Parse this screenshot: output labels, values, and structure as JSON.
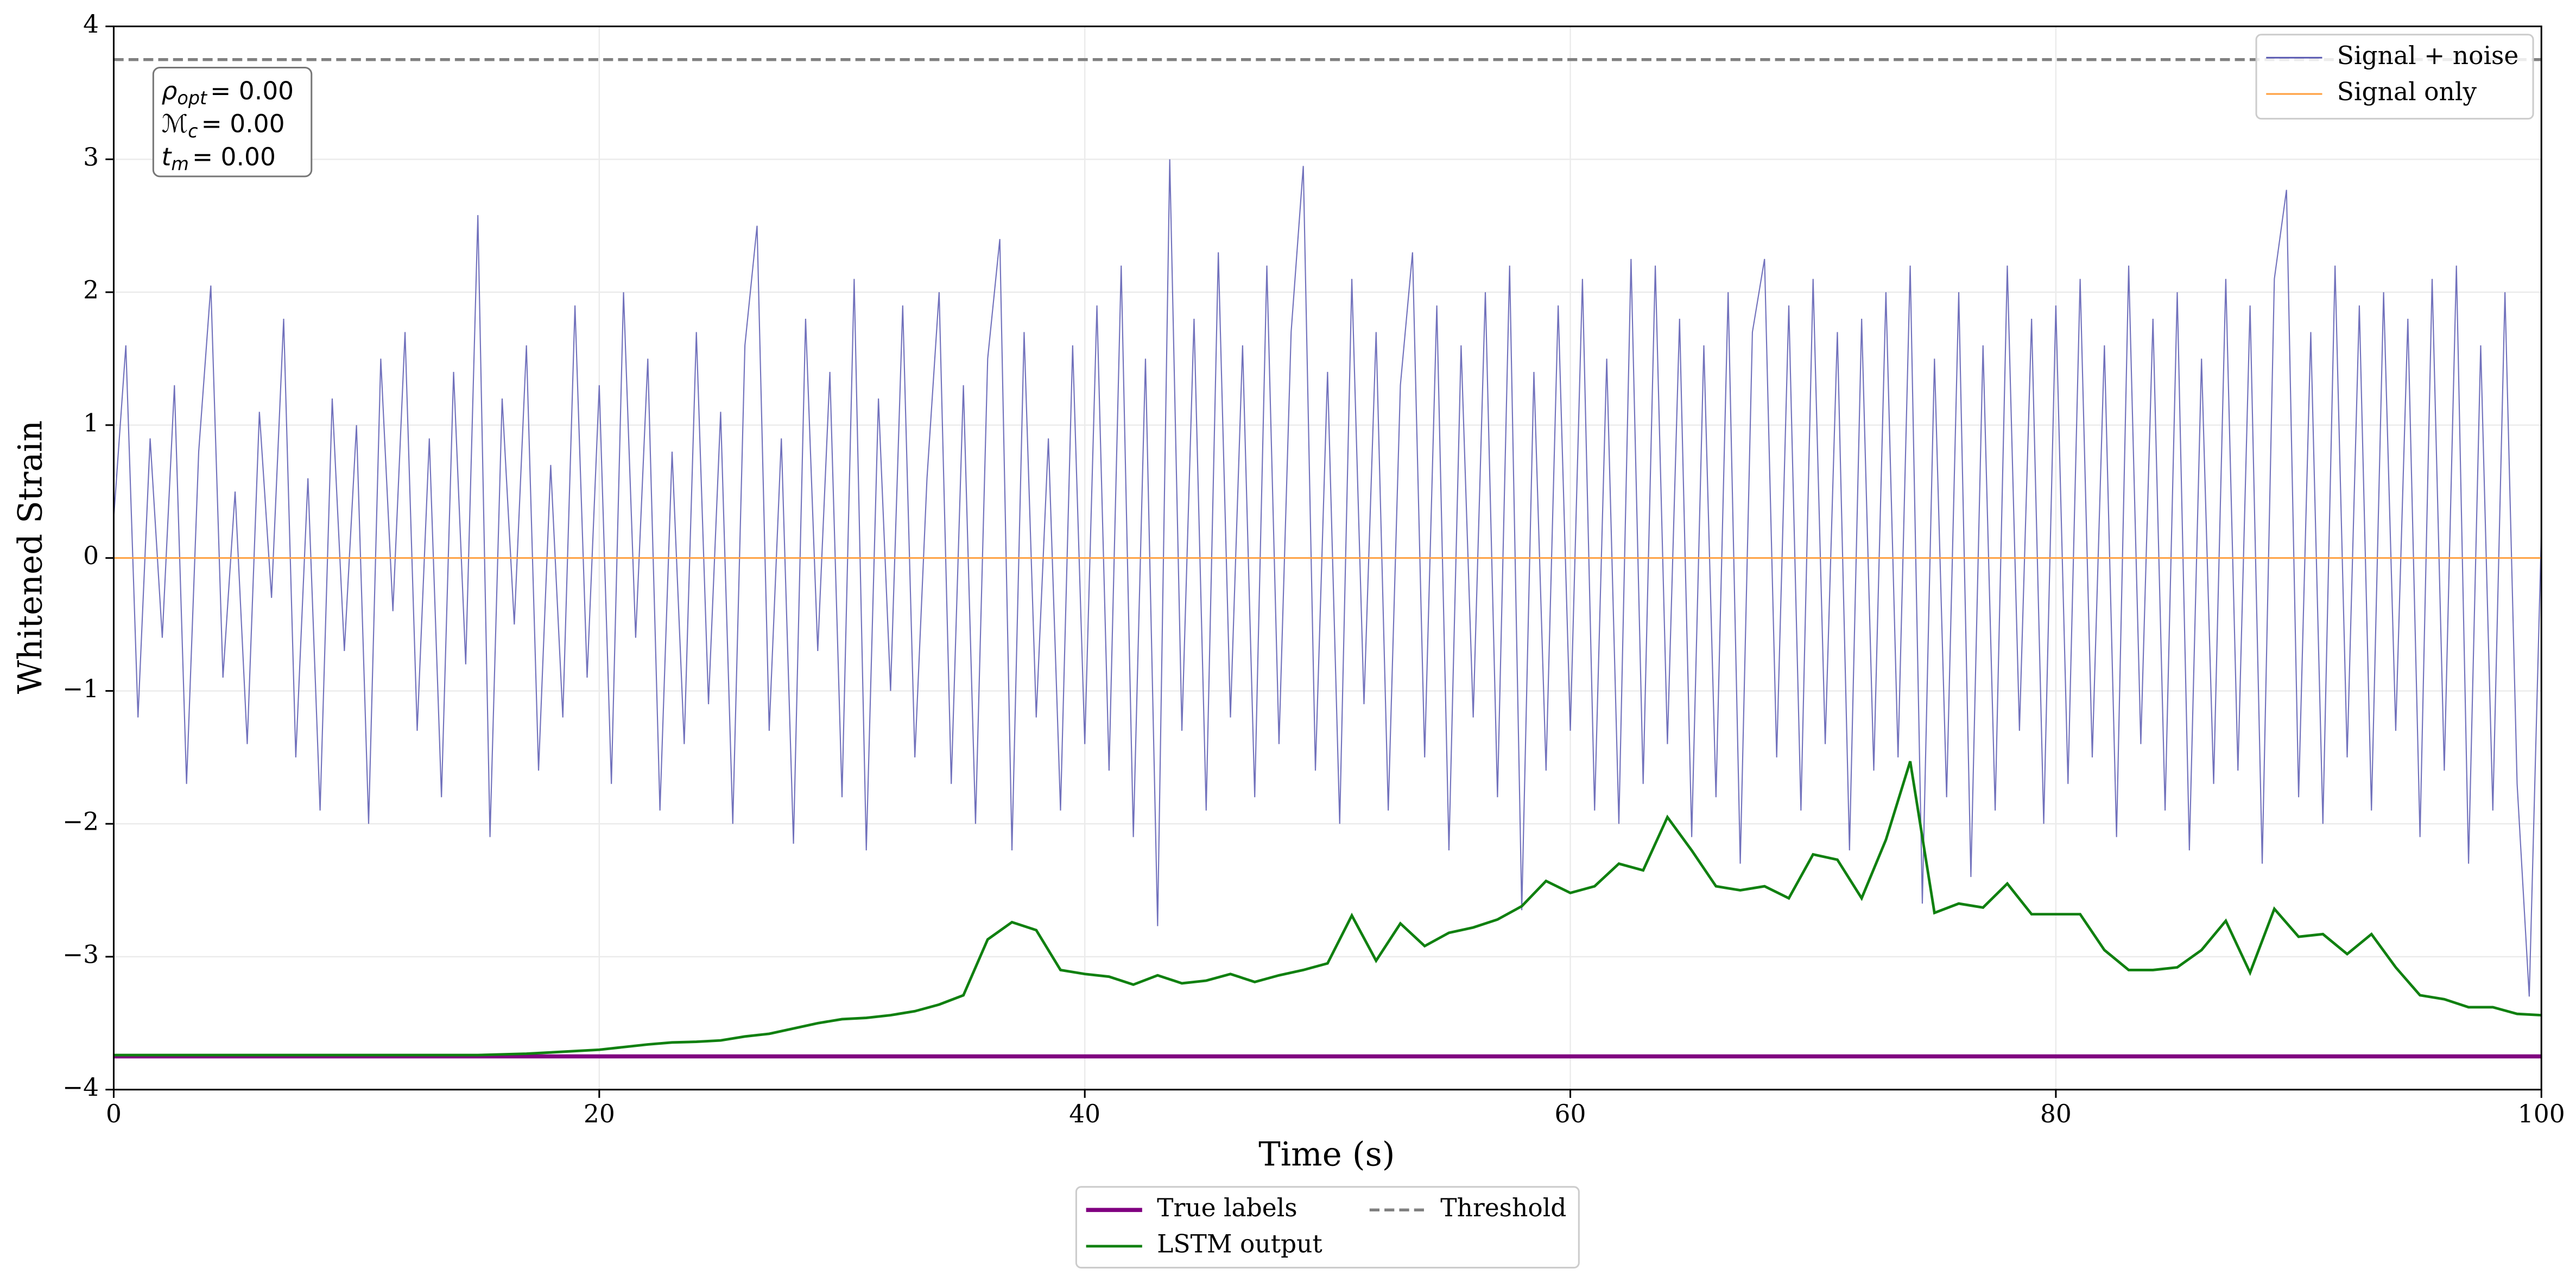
{
  "chart_data": {
    "type": "line",
    "xlabel": "Time (s)",
    "ylabel": "Whitened Strain",
    "xlim": [
      0,
      100
    ],
    "xticks": [
      0,
      20,
      40,
      60,
      80,
      100
    ],
    "ylim": [
      -4,
      4
    ],
    "yticks": [
      {
        "value": -4,
        "label": "−4"
      },
      {
        "value": -3,
        "label": "−3"
      },
      {
        "value": -2,
        "label": "−2"
      },
      {
        "value": -1,
        "label": "−1"
      },
      0,
      1,
      2,
      3,
      4
    ],
    "grid": true,
    "annotations": [
      {
        "symbol": "ρ",
        "sub": "opt",
        "text": "= 0.00"
      },
      {
        "symbol": "ℳ",
        "sub": "c",
        "text": "= 0.00"
      },
      {
        "symbol": "t",
        "sub": "m",
        "text": "= 0.00"
      }
    ],
    "series": [
      {
        "name": "Signal + noise",
        "color": "#5858b0",
        "legend": "upper right",
        "x": [
          0,
          0.5,
          1,
          1.5,
          2,
          2.5,
          3,
          3.5,
          4,
          4.5,
          5,
          5.5,
          6,
          6.5,
          7,
          7.5,
          8,
          8.5,
          9,
          9.5,
          10,
          10.5,
          11,
          11.5,
          12,
          12.5,
          13,
          13.5,
          14,
          14.5,
          15,
          15.5,
          16,
          16.5,
          17,
          17.5,
          18,
          18.5,
          19,
          19.5,
          20,
          20.5,
          21,
          21.5,
          22,
          22.5,
          23,
          23.5,
          24,
          24.5,
          25,
          25.5,
          26,
          26.5,
          27,
          27.5,
          28,
          28.5,
          29,
          29.5,
          30,
          30.5,
          31,
          31.5,
          32,
          32.5,
          33,
          33.5,
          34,
          34.5,
          35,
          35.5,
          36,
          36.5,
          37,
          37.5,
          38,
          38.5,
          39,
          39.5,
          40,
          40.5,
          41,
          41.5,
          42,
          42.5,
          43,
          43.5,
          44,
          44.5,
          45,
          45.5,
          46,
          46.5,
          47,
          47.5,
          48,
          48.5,
          49,
          49.5,
          50,
          50.5,
          51,
          51.5,
          52,
          52.5,
          53,
          53.5,
          54,
          54.5,
          55,
          55.5,
          56,
          56.5,
          57,
          57.5,
          58,
          58.5,
          59,
          59.5,
          60,
          60.5,
          61,
          61.5,
          62,
          62.5,
          63,
          63.5,
          64,
          64.5,
          65,
          65.5,
          66,
          66.5,
          67,
          67.5,
          68,
          68.5,
          69,
          69.5,
          70,
          70.5,
          71,
          71.5,
          72,
          72.5,
          73,
          73.5,
          74,
          74.5,
          75,
          75.5,
          76,
          76.5,
          77,
          77.5,
          78,
          78.5,
          79,
          79.5,
          80,
          80.5,
          81,
          81.5,
          82,
          82.5,
          83,
          83.5,
          84,
          84.5,
          85,
          85.5,
          86,
          86.5,
          87,
          87.5,
          88,
          88.5,
          89,
          89.5,
          90,
          90.5,
          91,
          91.5,
          92,
          92.5,
          93,
          93.5,
          94,
          94.5,
          95,
          95.5,
          96,
          96.5,
          97,
          97.5,
          98,
          98.5,
          99,
          99.5,
          100
        ],
        "values": [
          0.3,
          1.6,
          -1.2,
          0.9,
          -0.6,
          1.3,
          -1.7,
          0.8,
          2.05,
          -0.9,
          0.5,
          -1.4,
          1.1,
          -0.3,
          1.8,
          -1.5,
          0.6,
          -1.9,
          1.2,
          -0.7,
          1.0,
          -2.0,
          1.5,
          -0.4,
          1.7,
          -1.3,
          0.9,
          -1.8,
          1.4,
          -0.8,
          2.58,
          -2.1,
          1.2,
          -0.5,
          1.6,
          -1.6,
          0.7,
          -1.2,
          1.9,
          -0.9,
          1.3,
          -1.7,
          2.0,
          -0.6,
          1.5,
          -1.9,
          0.8,
          -1.4,
          1.7,
          -1.1,
          1.1,
          -2.0,
          1.6,
          2.5,
          -1.3,
          0.9,
          -2.15,
          1.8,
          -0.7,
          1.4,
          -1.8,
          2.1,
          -2.2,
          1.2,
          -1.0,
          1.9,
          -1.5,
          0.6,
          2.0,
          -1.7,
          1.3,
          -2.0,
          1.5,
          2.4,
          -2.2,
          1.7,
          -1.2,
          0.9,
          -1.9,
          1.6,
          -1.4,
          1.9,
          -1.6,
          2.2,
          -2.1,
          1.5,
          -2.77,
          3.0,
          -1.3,
          1.8,
          -1.9,
          2.3,
          -1.2,
          1.6,
          -1.8,
          2.2,
          -1.4,
          1.7,
          2.95,
          -1.6,
          1.4,
          -2.0,
          2.1,
          -1.1,
          1.7,
          -1.9,
          1.3,
          2.3,
          -1.5,
          1.9,
          -2.2,
          1.6,
          -1.2,
          2.0,
          -1.8,
          2.2,
          -2.65,
          1.4,
          -1.6,
          1.9,
          -1.3,
          2.1,
          -1.9,
          1.5,
          -2.0,
          2.25,
          -1.7,
          2.2,
          -1.4,
          1.8,
          -2.1,
          1.6,
          -1.8,
          2.0,
          -2.3,
          1.7,
          2.25,
          -1.5,
          1.9,
          -1.9,
          2.1,
          -1.4,
          1.7,
          -2.2,
          1.8,
          -1.6,
          2.0,
          -1.5,
          2.2,
          -2.6,
          1.5,
          -1.8,
          2.0,
          -2.4,
          1.6,
          -1.9,
          2.2,
          -1.3,
          1.8,
          -2.0,
          1.9,
          -1.7,
          2.1,
          -1.5,
          1.6,
          -2.1,
          2.2,
          -1.4,
          1.8,
          -1.9,
          2.0,
          -2.2,
          1.5,
          -1.7,
          2.1,
          -1.6,
          1.9,
          -2.3,
          2.1,
          2.77,
          -1.8,
          1.7,
          -2.0,
          2.2,
          -1.5,
          1.9,
          -1.9,
          2.0,
          -1.3,
          1.8,
          -2.1,
          2.1,
          -1.6,
          2.2,
          -2.3,
          1.6,
          -1.9,
          2.0,
          -1.7,
          -3.3,
          0.2
        ]
      },
      {
        "name": "Signal only",
        "color": "#ffa040",
        "legend": "upper right",
        "x": [
          0,
          100
        ],
        "values": [
          0,
          0
        ]
      },
      {
        "name": "True labels",
        "color": "#800080",
        "legend": "lower center",
        "x": [
          0,
          100
        ],
        "values": [
          -3.75,
          -3.75
        ]
      },
      {
        "name": "LSTM output",
        "color": "#108010",
        "legend": "lower center",
        "x": [
          0,
          1,
          2,
          3,
          4,
          5,
          6,
          7,
          8,
          9,
          10,
          11,
          12,
          13,
          14,
          15,
          16,
          17,
          18,
          19,
          20,
          21,
          22,
          23,
          24,
          25,
          26,
          27,
          28,
          29,
          30,
          31,
          32,
          33,
          34,
          35,
          36,
          37,
          38,
          39,
          40,
          41,
          42,
          43,
          44,
          45,
          46,
          47,
          48,
          49,
          50,
          51,
          52,
          53,
          54,
          55,
          56,
          57,
          58,
          59,
          60,
          61,
          62,
          63,
          64,
          65,
          66,
          67,
          68,
          69,
          70,
          71,
          72,
          73,
          74,
          75,
          76,
          77,
          78,
          79,
          80,
          81,
          82,
          83,
          84,
          85,
          86,
          87,
          88,
          89,
          90,
          91,
          92,
          93,
          94,
          95,
          96,
          97,
          98,
          99,
          100
        ],
        "values": [
          -3.74,
          -3.74,
          -3.74,
          -3.74,
          -3.74,
          -3.74,
          -3.74,
          -3.74,
          -3.74,
          -3.74,
          -3.74,
          -3.74,
          -3.74,
          -3.74,
          -3.74,
          -3.74,
          -3.735,
          -3.73,
          -3.72,
          -3.71,
          -3.7,
          -3.68,
          -3.66,
          -3.645,
          -3.64,
          -3.63,
          -3.6,
          -3.58,
          -3.54,
          -3.5,
          -3.47,
          -3.46,
          -3.44,
          -3.41,
          -3.36,
          -3.29,
          -2.87,
          -2.74,
          -2.8,
          -3.1,
          -3.13,
          -3.15,
          -3.21,
          -3.14,
          -3.2,
          -3.18,
          -3.13,
          -3.19,
          -3.14,
          -3.1,
          -3.05,
          -2.69,
          -3.03,
          -2.75,
          -2.92,
          -2.82,
          -2.78,
          -2.72,
          -2.62,
          -2.43,
          -2.52,
          -2.47,
          -2.3,
          -2.35,
          -1.95,
          -2.2,
          -2.47,
          -2.5,
          -2.47,
          -2.56,
          -2.23,
          -2.27,
          -2.56,
          -2.12,
          -1.53,
          -2.67,
          -2.6,
          -2.63,
          -2.45,
          -2.68,
          -2.68,
          -2.68,
          -2.95,
          -3.1,
          -3.1,
          -3.08,
          -2.95,
          -2.73,
          -3.12,
          -2.64,
          -2.85,
          -2.83,
          -2.98,
          -2.83,
          -3.08,
          -3.29,
          -3.32,
          -3.38,
          -3.38,
          -3.43,
          -3.44
        ]
      }
    ],
    "hlines": [
      {
        "name": "Threshold",
        "y": 3.75,
        "color": "#808080",
        "dashed": true,
        "legend": "lower center"
      }
    ]
  }
}
